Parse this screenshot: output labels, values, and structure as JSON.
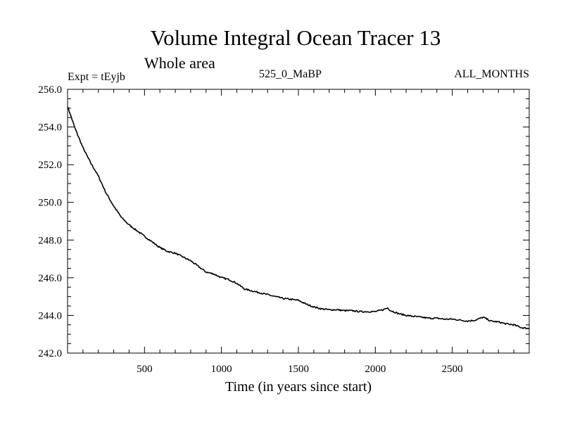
{
  "chart_data": {
    "type": "line",
    "title": "Volume Integral Ocean Tracer 13",
    "subtitle": "Whole area",
    "annotations": {
      "left": "Expt = tEyjb",
      "center": "525_0_MaBP",
      "right": "ALL_MONTHS"
    },
    "xlabel": "Time (in years since start)",
    "ylabel": "",
    "xlim": [
      0,
      3000
    ],
    "ylim": [
      242.0,
      256.0
    ],
    "x_ticks": [
      500,
      1000,
      1500,
      2000,
      2500
    ],
    "x_tick_labels": [
      "500",
      "1000",
      "1500",
      "2000",
      "2500"
    ],
    "y_ticks": [
      242.0,
      244.0,
      246.0,
      248.0,
      250.0,
      252.0,
      254.0,
      256.0
    ],
    "y_tick_labels": [
      "242.0",
      "244.0",
      "246.0",
      "248.0",
      "250.0",
      "252.0",
      "254.0",
      "256.0"
    ],
    "grid": false,
    "series": [
      {
        "name": "Tracer 13",
        "x": [
          0,
          50,
          100,
          150,
          200,
          250,
          300,
          350,
          400,
          450,
          500,
          550,
          600,
          650,
          700,
          750,
          800,
          850,
          900,
          950,
          1000,
          1050,
          1100,
          1150,
          1200,
          1250,
          1300,
          1350,
          1400,
          1450,
          1500,
          1550,
          1600,
          1650,
          1700,
          1750,
          1800,
          1850,
          1900,
          1950,
          2000,
          2050,
          2080,
          2100,
          2150,
          2200,
          2250,
          2300,
          2350,
          2400,
          2450,
          2500,
          2550,
          2600,
          2650,
          2700,
          2750,
          2800,
          2850,
          2900,
          2950,
          3000
        ],
        "values": [
          255.1,
          253.9,
          252.9,
          252.1,
          251.4,
          250.5,
          249.8,
          249.2,
          248.8,
          248.5,
          248.2,
          247.9,
          247.6,
          247.4,
          247.3,
          247.1,
          246.9,
          246.6,
          246.3,
          246.2,
          246.0,
          245.9,
          245.7,
          245.4,
          245.3,
          245.2,
          245.1,
          245.0,
          244.9,
          244.85,
          244.8,
          244.6,
          244.45,
          244.35,
          244.3,
          244.3,
          244.25,
          244.25,
          244.2,
          244.2,
          244.2,
          244.3,
          244.4,
          244.25,
          244.1,
          244.0,
          243.95,
          243.9,
          243.85,
          243.85,
          243.8,
          243.8,
          243.75,
          243.7,
          243.75,
          243.9,
          243.7,
          243.65,
          243.55,
          243.5,
          243.35,
          243.3
        ]
      }
    ]
  }
}
